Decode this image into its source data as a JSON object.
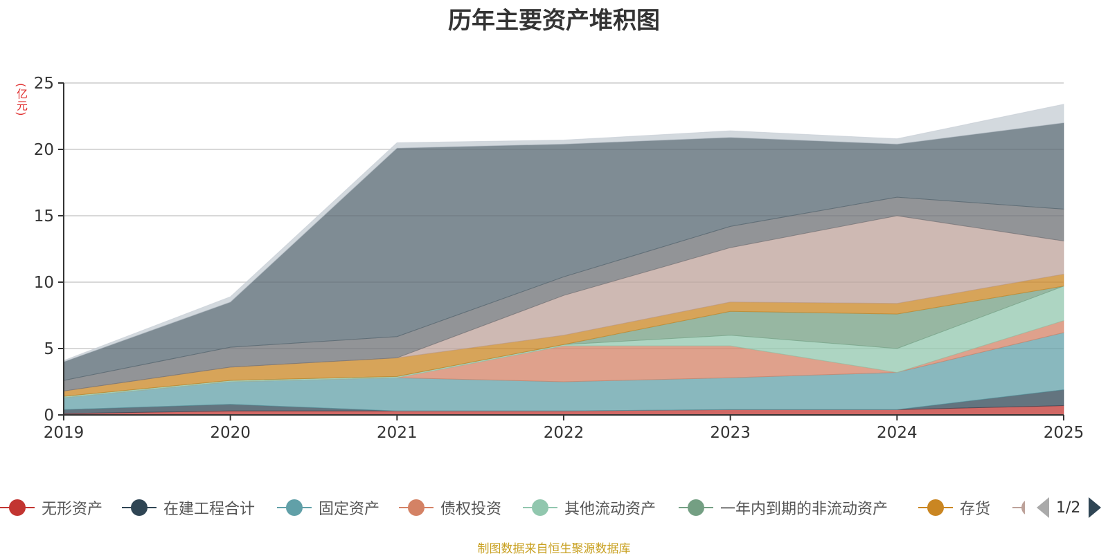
{
  "title": "历年主要资产堆积图",
  "source_note": "制图数据来自恒生聚源数据库",
  "legend_pager": {
    "page_text": "1/2"
  },
  "chart_data": {
    "type": "area",
    "stacked": true,
    "title": "历年主要资产堆积图",
    "ylabel": "(亿元)",
    "xlabel": "",
    "ylim": [
      0,
      25
    ],
    "yticks": [
      0,
      5,
      10,
      15,
      20,
      25
    ],
    "grid": true,
    "categories": [
      "2019",
      "2020",
      "2021",
      "2022",
      "2023",
      "2024",
      "2025"
    ],
    "series": [
      {
        "name": "无形资产",
        "color": "#c23531",
        "values": [
          0.1,
          0.3,
          0.3,
          0.3,
          0.4,
          0.4,
          0.7
        ],
        "legend_visible": true
      },
      {
        "name": "在建工程合计",
        "color": "#2f4554",
        "values": [
          0.3,
          0.5,
          0.0,
          0.0,
          0.0,
          0.0,
          1.2
        ],
        "legend_visible": true
      },
      {
        "name": "固定资产",
        "color": "#61a0a8",
        "values": [
          0.9,
          1.7,
          2.5,
          2.2,
          2.4,
          2.8,
          4.3
        ],
        "legend_visible": true
      },
      {
        "name": "债权投资",
        "color": "#d48265",
        "values": [
          0.0,
          0.0,
          0.0,
          2.7,
          2.4,
          0.0,
          0.9
        ],
        "legend_visible": true
      },
      {
        "name": "其他流动资产",
        "color": "#91c7ae",
        "values": [
          0.1,
          0.1,
          0.1,
          0.1,
          0.8,
          1.8,
          2.6
        ],
        "legend_visible": true
      },
      {
        "name": "一年内到期的非流动资产",
        "color": "#749f83",
        "values": [
          0.0,
          0.0,
          0.0,
          0.0,
          1.8,
          2.6,
          0.0
        ],
        "legend_visible": true
      },
      {
        "name": "存货",
        "color": "#ca8622",
        "values": [
          0.4,
          1.0,
          1.4,
          0.7,
          0.7,
          0.8,
          0.9
        ],
        "legend_visible": true
      },
      {
        "name": "",
        "color": "#bda29a",
        "values": [
          0.0,
          0.0,
          0.0,
          3.0,
          4.1,
          6.6,
          2.5
        ],
        "legend_visible": false
      },
      {
        "name": "",
        "color": "#6e7074",
        "values": [
          0.8,
          1.5,
          1.6,
          1.4,
          1.6,
          1.4,
          2.4
        ],
        "legend_visible": false
      },
      {
        "name": "",
        "color": "#546570",
        "values": [
          1.4,
          3.4,
          14.2,
          10.0,
          6.7,
          4.0,
          6.5
        ],
        "legend_visible": false
      },
      {
        "name": "",
        "color": "#c4ccd3",
        "values": [
          0.1,
          0.4,
          0.4,
          0.3,
          0.5,
          0.4,
          1.4
        ],
        "legend_visible": false
      }
    ]
  }
}
